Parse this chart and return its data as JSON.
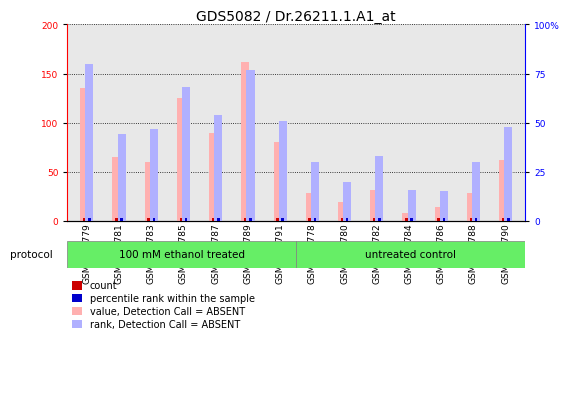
{
  "title": "GDS5082 / Dr.26211.1.A1_at",
  "samples": [
    "GSM1176779",
    "GSM1176781",
    "GSM1176783",
    "GSM1176785",
    "GSM1176787",
    "GSM1176789",
    "GSM1176791",
    "GSM1176778",
    "GSM1176780",
    "GSM1176782",
    "GSM1176784",
    "GSM1176786",
    "GSM1176788",
    "GSM1176790"
  ],
  "value_absent": [
    135,
    65,
    60,
    125,
    89,
    162,
    80,
    28,
    19,
    32,
    8,
    14,
    28,
    62
  ],
  "rank_absent": [
    80,
    44,
    47,
    68,
    54,
    77,
    51,
    30,
    20,
    33,
    16,
    15,
    30,
    48
  ],
  "ylim_left": [
    0,
    200
  ],
  "ylim_right": [
    0,
    100
  ],
  "yticks_left": [
    0,
    50,
    100,
    150,
    200
  ],
  "yticks_right": [
    0,
    25,
    50,
    75,
    100
  ],
  "ytick_labels_right": [
    "0",
    "25",
    "50",
    "75",
    "100%"
  ],
  "group1_label": "100 mM ethanol treated",
  "group2_label": "untreated control",
  "group1_count": 7,
  "group2_count": 7,
  "color_value_absent": "#ffb0b0",
  "color_rank_absent": "#b0b0ff",
  "color_value_present": "#cc0000",
  "color_rank_present": "#0000cc",
  "background_plot": "#e8e8e8",
  "background_green": "#66ee66",
  "title_fontsize": 10,
  "tick_fontsize": 6.5,
  "label_fontsize": 7.5,
  "legend_fontsize": 7,
  "protocol_fontsize": 7.5
}
